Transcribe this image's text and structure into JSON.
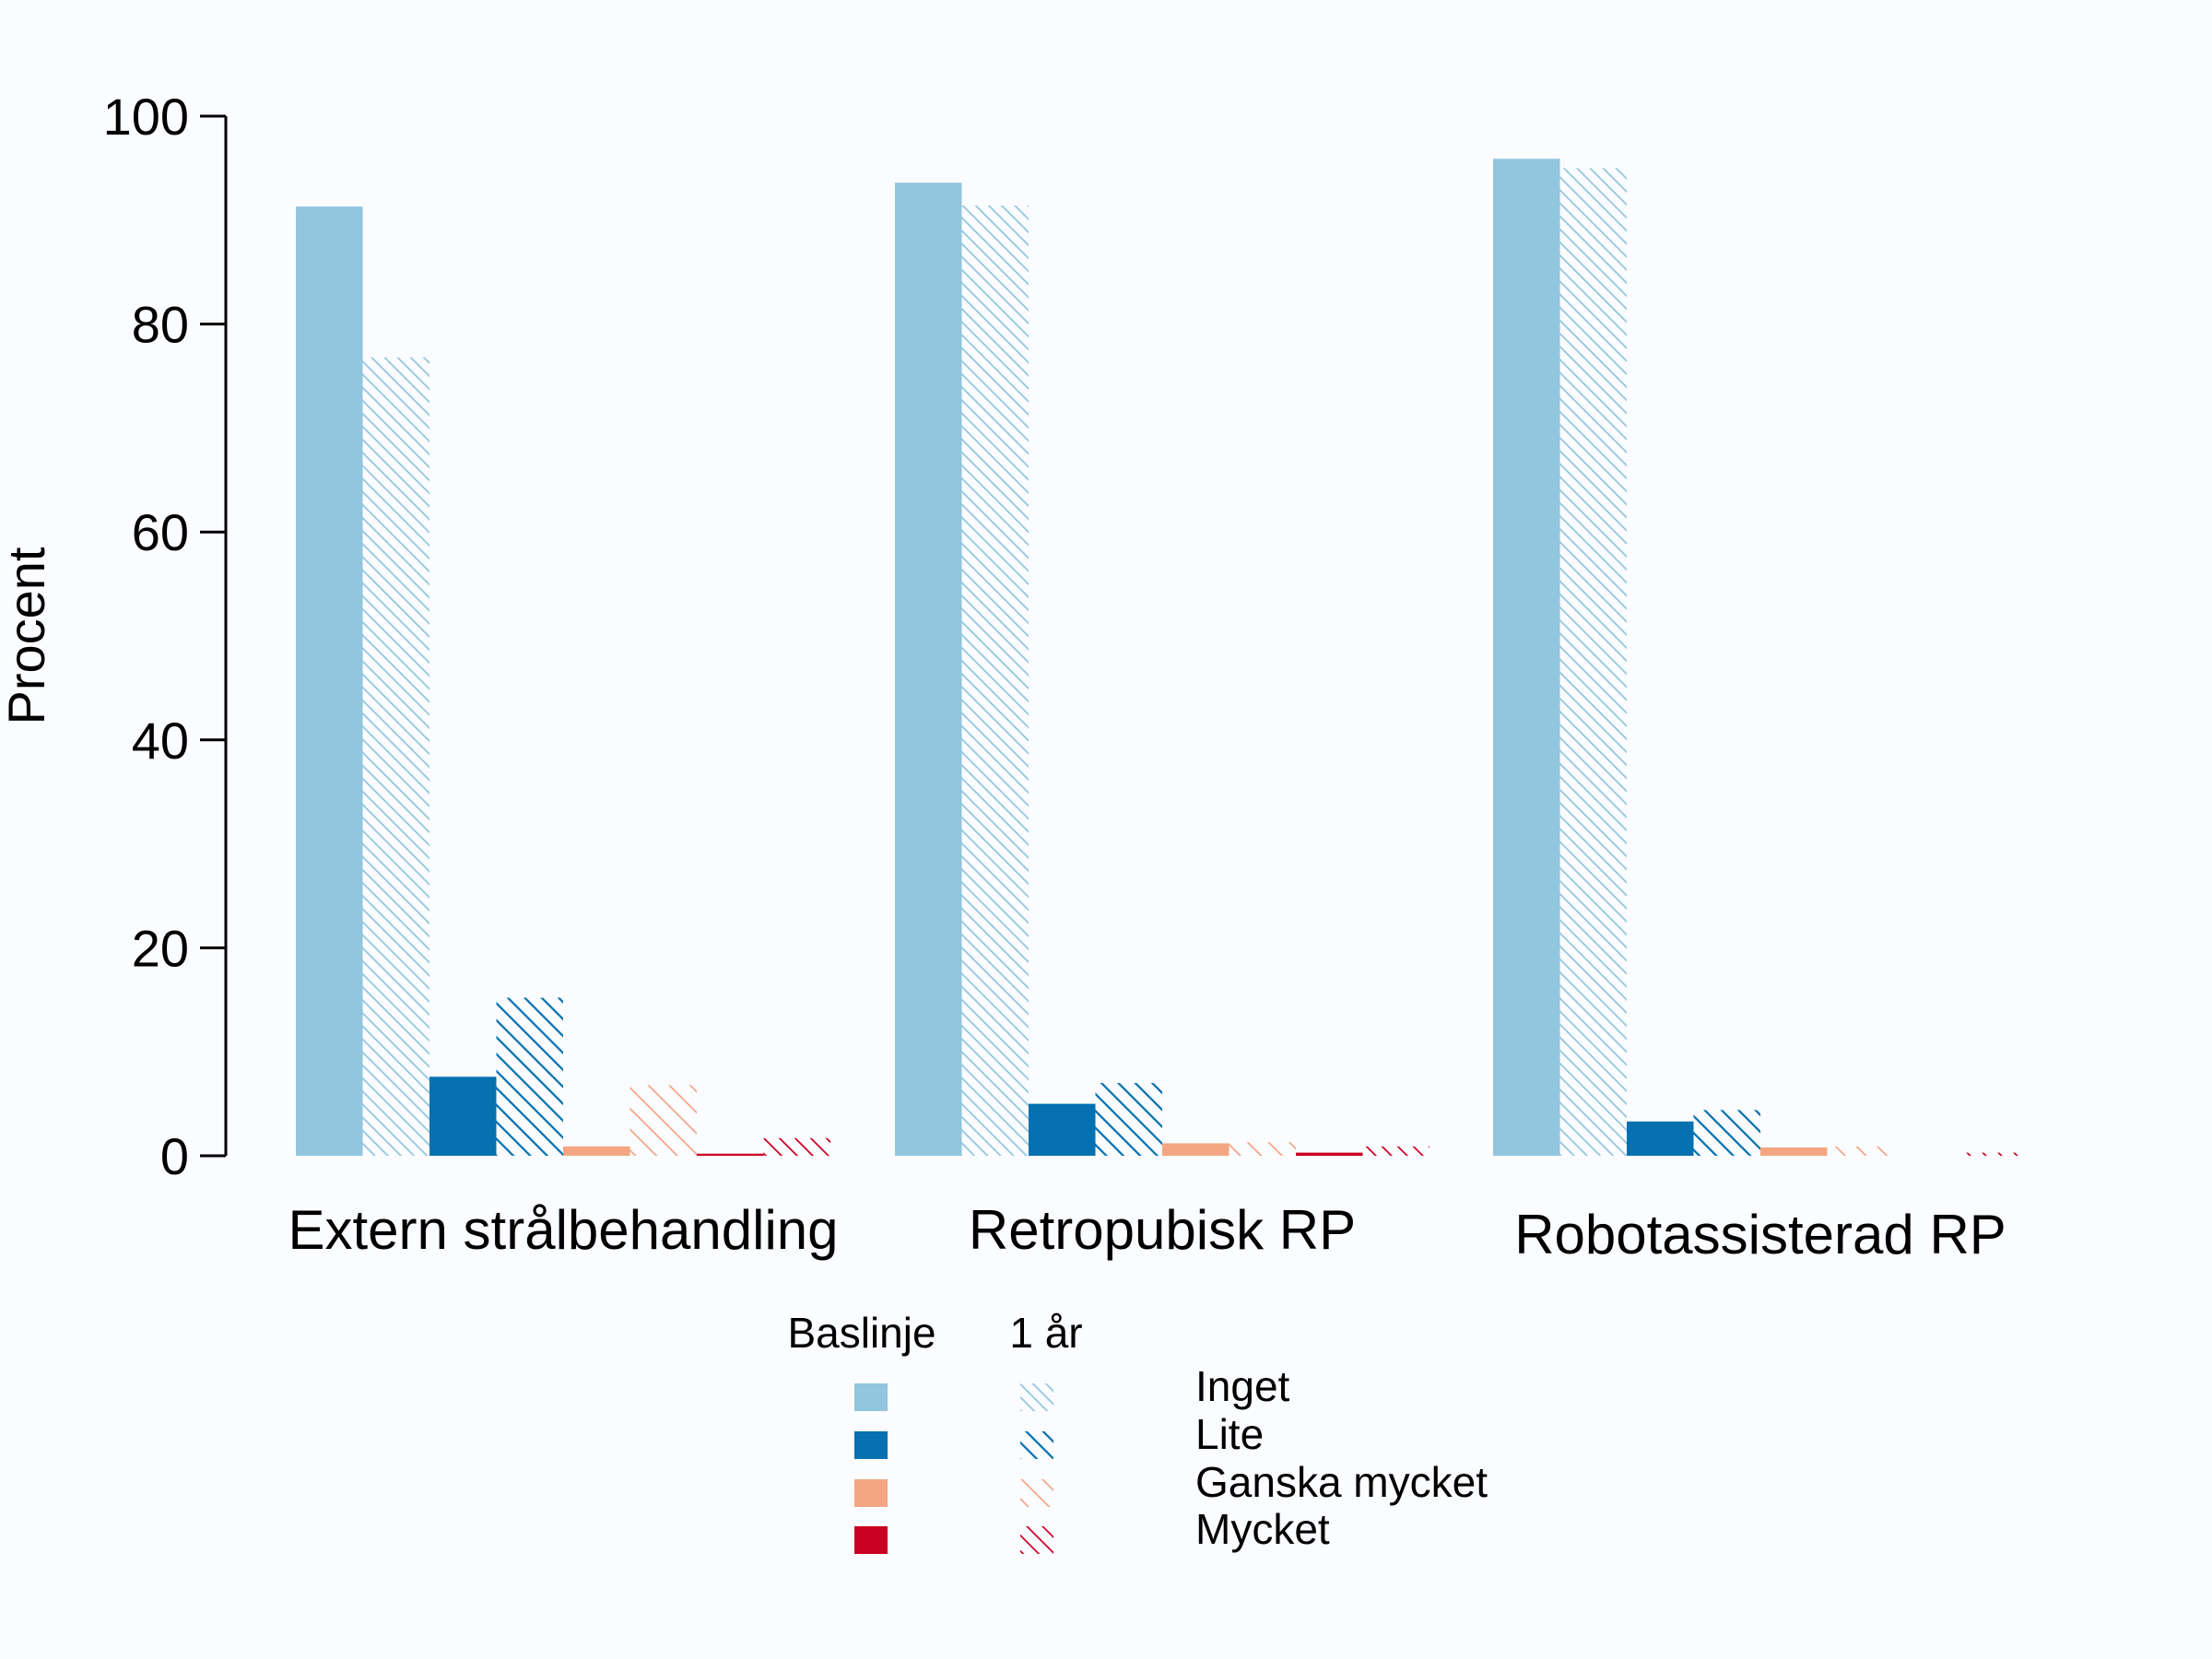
{
  "chart_data": {
    "type": "bar",
    "title": "",
    "xlabel": "",
    "ylabel": "Procent",
    "ylim": [
      0,
      100
    ],
    "yticks": [
      0,
      20,
      40,
      60,
      80,
      100
    ],
    "grid": false,
    "groups": [
      "Extern strålbehandling",
      "Retropubisk RP",
      "Robotassisterad RP"
    ],
    "timepoints": [
      "Baslinje",
      "1 år"
    ],
    "series": [
      {
        "name": "Inget",
        "color": "#92c5de",
        "baslinje": [
          91.3,
          93.6,
          95.9
        ],
        "ett_ar": [
          76.8,
          91.4,
          95.0
        ]
      },
      {
        "name": "Lite",
        "color": "#0571b0",
        "baslinje": [
          7.6,
          5.0,
          3.3
        ],
        "ett_ar": [
          15.2,
          7.0,
          4.4
        ]
      },
      {
        "name": "Ganska mycket",
        "color": "#f4a582",
        "baslinje": [
          0.9,
          1.2,
          0.8
        ],
        "ett_ar": [
          6.8,
          1.3,
          0.9
        ]
      },
      {
        "name": "Mycket",
        "color": "#ca0020",
        "baslinje": [
          0.2,
          0.3,
          0.0
        ],
        "ett_ar": [
          1.7,
          0.9,
          0.3
        ]
      }
    ],
    "legend": {
      "position": "bottom-center",
      "col_headers": [
        "Baslinje",
        "1 år"
      ]
    }
  }
}
